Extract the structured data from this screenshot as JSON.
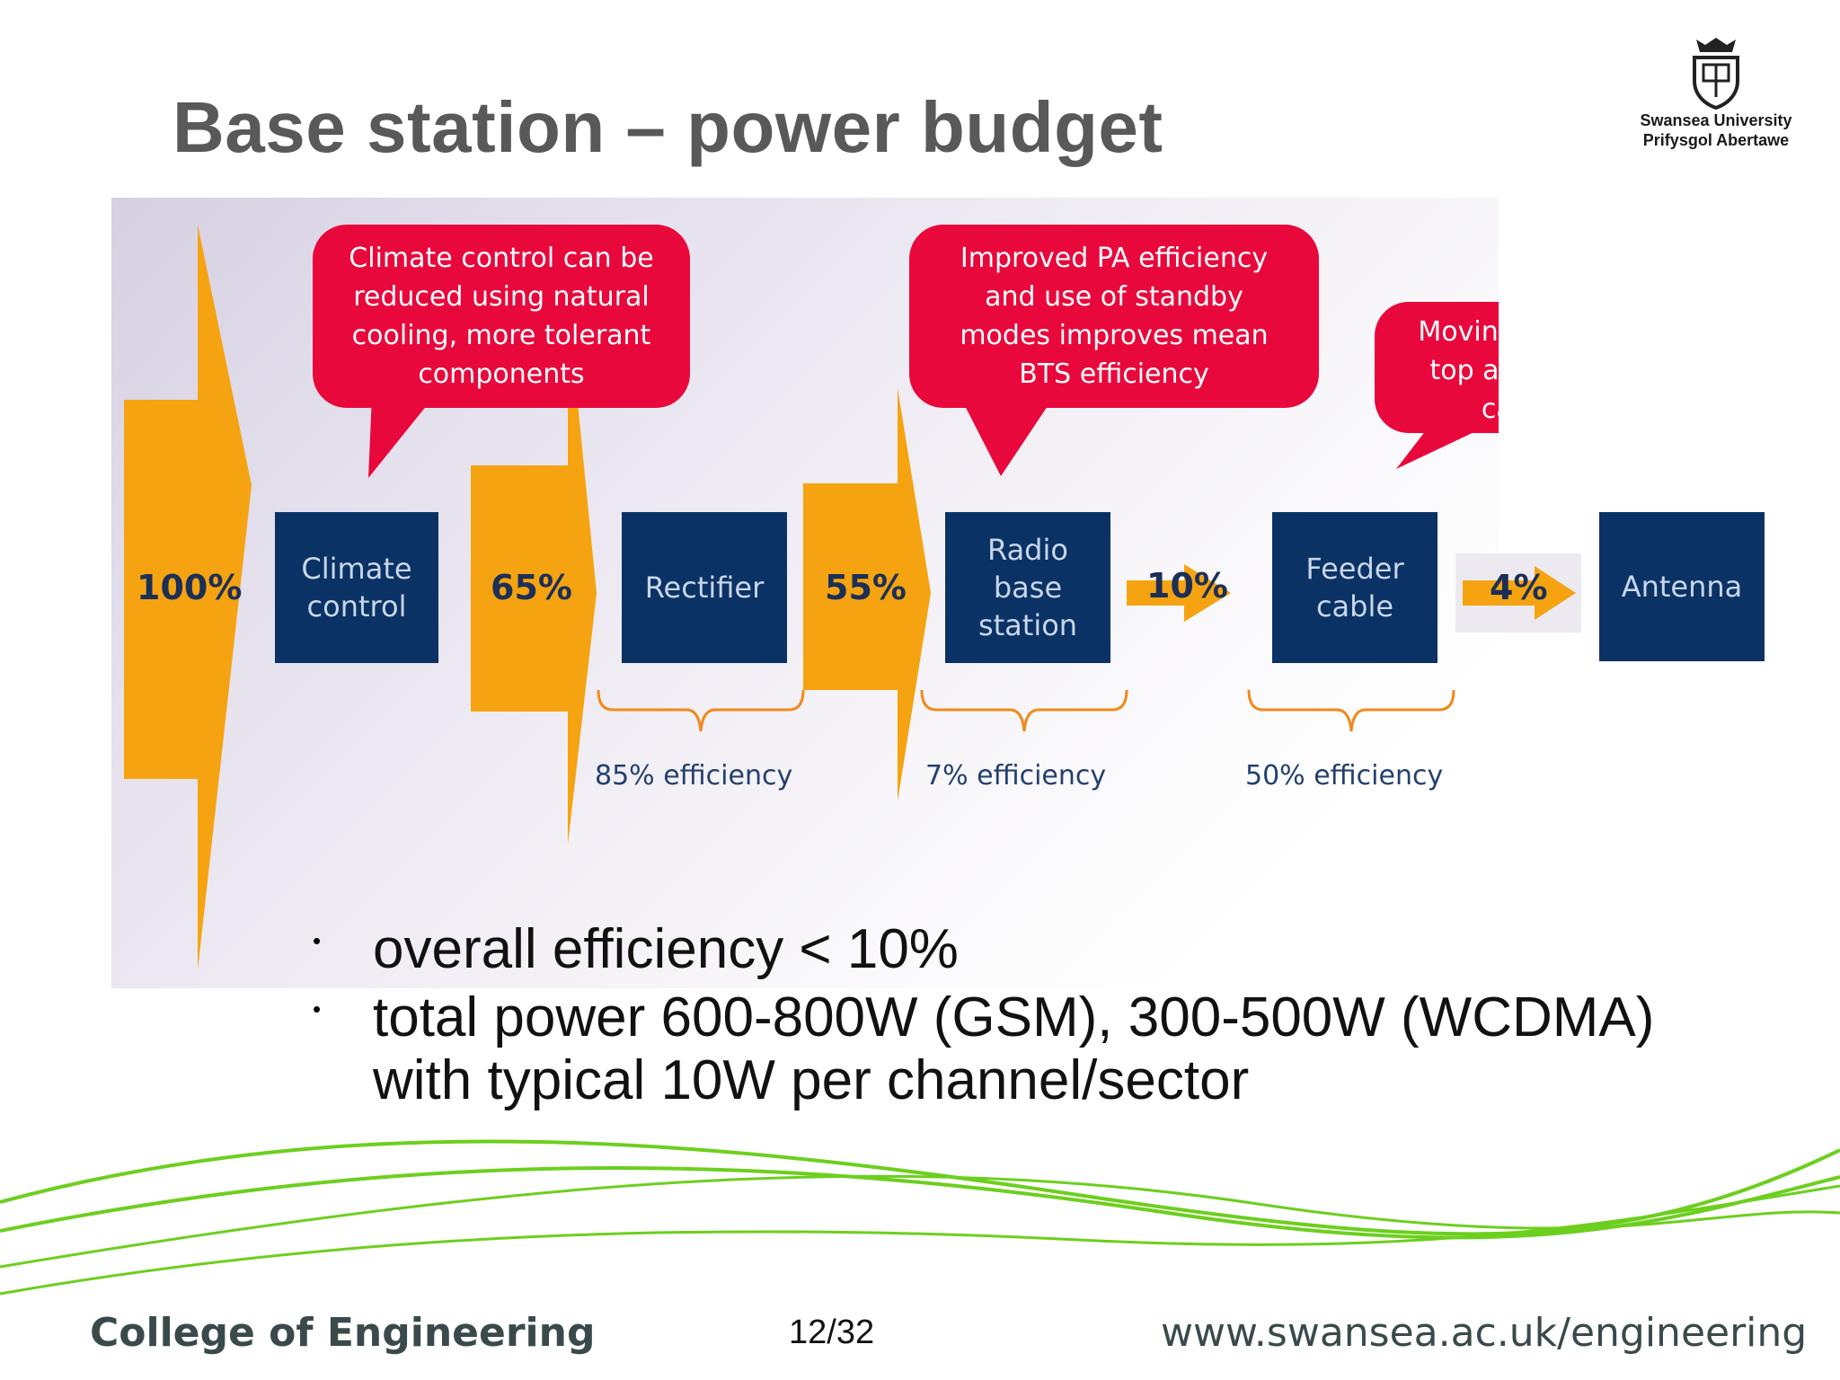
{
  "slide": {
    "title": "Base station – power budget",
    "logo": {
      "line1": "Swansea University",
      "line2": "Prifysgol Abertawe"
    }
  },
  "diagram": {
    "arrow_color": "#f5a311",
    "box_color": "#0b3265",
    "callout_color": "#e8083c",
    "stages": [
      {
        "percent": "100%",
        "box": "Climate\ncontrol"
      },
      {
        "percent": "65%",
        "box": "Rectifier"
      },
      {
        "percent": "55%",
        "box": "Radio\nbase\nstation"
      },
      {
        "percent": "10%",
        "box": "Feeder\ncable"
      },
      {
        "percent": "4%",
        "box": "Antenna"
      }
    ],
    "callouts": [
      {
        "text": "Climate control can be\nreduced using natural\ncooling, more tolerant\ncomponents"
      },
      {
        "text": "Improved PA efficiency\nand use of standby\nmodes improves mean\nBTS efficiency"
      },
      {
        "text": "Moving PA to tower\ntop avoids feeder\ncable loss"
      }
    ],
    "efficiencies": [
      "85% efficiency",
      "7% efficiency",
      "50% efficiency"
    ]
  },
  "bullets": [
    "overall efficiency < 10%",
    "total power 600-800W (GSM), 300-500W (WCDMA)\nwith typical 10W per channel/sector"
  ],
  "footer": {
    "college": "College of Engineering",
    "page": "12/32",
    "url": "www.swansea.ac.uk/engineering"
  },
  "accent_green": "#6ccf1e"
}
